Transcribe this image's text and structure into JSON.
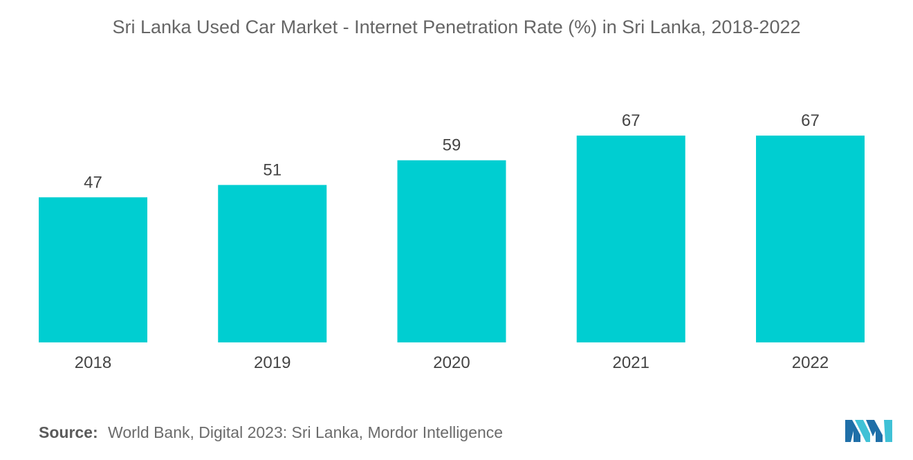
{
  "chart_data": {
    "type": "bar",
    "title": "Sri Lanka Used Car Market - Internet Penetration Rate (%) in Sri Lanka, 2018-2022",
    "categories": [
      "2018",
      "2019",
      "2020",
      "2021",
      "2022"
    ],
    "values": [
      47,
      51,
      59,
      67,
      67
    ],
    "xlabel": "",
    "ylabel": "",
    "ylim": [
      0,
      67
    ],
    "grid": false,
    "data_labels": true,
    "bar_color": "#00CED1"
  },
  "source": {
    "label": "Source:",
    "text": "World Bank, Digital 2023: Sri Lanka, Mordor Intelligence"
  },
  "logo": {
    "icon": "mordor-intelligence-logo-icon",
    "colors": [
      "#1f6fa8",
      "#3fc1d6"
    ]
  }
}
